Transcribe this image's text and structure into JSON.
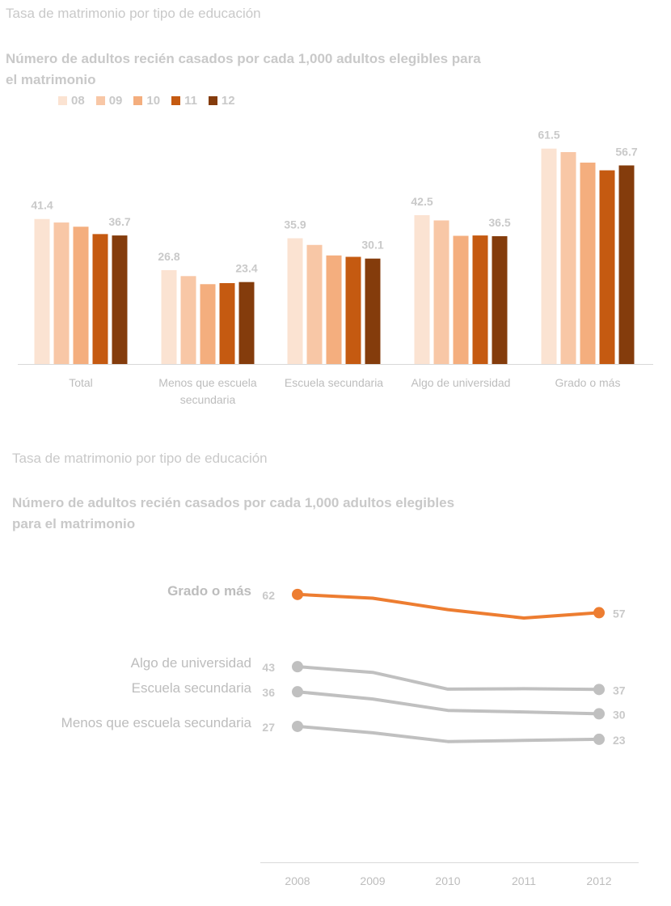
{
  "chart_data": [
    {
      "type": "bar",
      "title": "Tasa de matrimonio por tipo de educación",
      "subtitle_line1": "Número de adultos recién casados por cada 1,000 adultos elegibles para",
      "subtitle_line2": "el matrimonio",
      "legend_placement": "top-left",
      "grid": false,
      "ylim": [
        0,
        70
      ],
      "categories": [
        {
          "line1": "Total",
          "line2": ""
        },
        {
          "line1": "Menos que escuela",
          "line2": "secundaria"
        },
        {
          "line1": "Escuela secundaria",
          "line2": ""
        },
        {
          "line1": "Algo de universidad",
          "line2": ""
        },
        {
          "line1": "Grado o más",
          "line2": ""
        }
      ],
      "series": [
        {
          "name": "08",
          "color": "#fbe3d2",
          "values": [
            41.4,
            26.8,
            35.9,
            42.5,
            61.5
          ]
        },
        {
          "name": "09",
          "color": "#f8c7a6",
          "values": [
            40.4,
            25.1,
            34.0,
            41.0,
            60.5
          ]
        },
        {
          "name": "10",
          "color": "#f4ae7e",
          "values": [
            39.2,
            22.8,
            31.0,
            36.6,
            57.5
          ]
        },
        {
          "name": "11",
          "color": "#c55a11",
          "values": [
            37.1,
            23.1,
            30.6,
            36.7,
            55.3
          ]
        },
        {
          "name": "12",
          "color": "#843c0c",
          "values": [
            36.7,
            23.4,
            30.1,
            36.5,
            56.7
          ]
        }
      ],
      "data_labels": [
        {
          "category": 0,
          "series": 0,
          "text": "41.4"
        },
        {
          "category": 0,
          "series": 4,
          "text": "36.7"
        },
        {
          "category": 1,
          "series": 0,
          "text": "26.8"
        },
        {
          "category": 1,
          "series": 4,
          "text": "23.4"
        },
        {
          "category": 2,
          "series": 0,
          "text": "35.9"
        },
        {
          "category": 2,
          "series": 4,
          "text": "30.1"
        },
        {
          "category": 3,
          "series": 0,
          "text": "42.5"
        },
        {
          "category": 3,
          "series": 4,
          "text": "36.5"
        },
        {
          "category": 4,
          "series": 0,
          "text": "61.5"
        },
        {
          "category": 4,
          "series": 4,
          "text": "56.7"
        }
      ]
    },
    {
      "type": "line",
      "title": "Tasa de matrimonio por tipo de educación",
      "subtitle_line1": "Número de adultos recién casados por cada 1,000 adultos elegibles",
      "subtitle_line2": "para el matrimonio",
      "grid": false,
      "x": [
        "2008",
        "2009",
        "2010",
        "2011",
        "2012"
      ],
      "ylim": [
        0,
        70
      ],
      "series": [
        {
          "name": "Grado o más",
          "color": "#ed7d31",
          "highlight": true,
          "values": [
            61.5,
            60.5,
            57.5,
            55.3,
            56.7
          ],
          "start_label": "62",
          "end_label": "57"
        },
        {
          "name": "Algo de universidad",
          "color": "#c0c0c0",
          "highlight": false,
          "values": [
            42.5,
            41.0,
            36.6,
            36.7,
            36.5
          ],
          "start_label": "43",
          "end_label": "37"
        },
        {
          "name": "Escuela secundaria",
          "color": "#c0c0c0",
          "highlight": false,
          "values": [
            35.9,
            34.0,
            31.0,
            30.6,
            30.1
          ],
          "start_label": "36",
          "end_label": "30"
        },
        {
          "name": "Menos que escuela secundaria",
          "color": "#c0c0c0",
          "highlight": false,
          "values": [
            26.8,
            25.1,
            22.8,
            23.1,
            23.4
          ],
          "start_label": "27",
          "end_label": "23"
        }
      ]
    }
  ]
}
